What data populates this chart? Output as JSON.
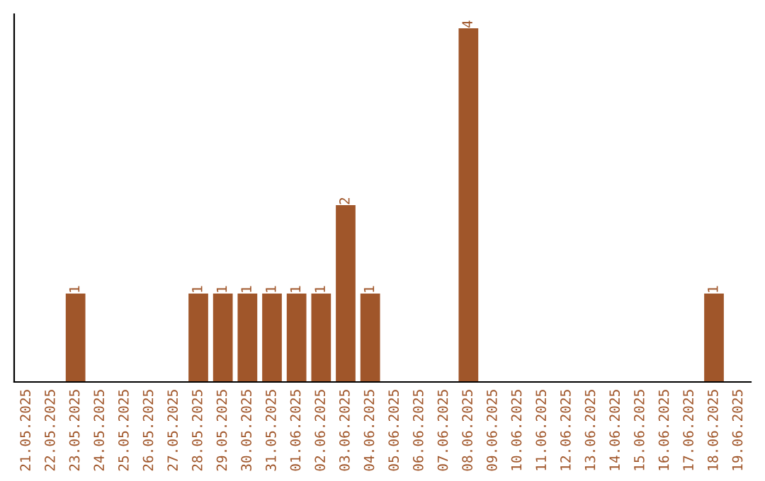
{
  "chart_data": {
    "type": "bar",
    "categories": [
      "21.05.2025",
      "22.05.2025",
      "23.05.2025",
      "24.05.2025",
      "25.05.2025",
      "26.05.2025",
      "27.05.2025",
      "28.05.2025",
      "29.05.2025",
      "30.05.2025",
      "31.05.2025",
      "01.06.2025",
      "02.06.2025",
      "03.06.2025",
      "04.06.2025",
      "05.06.2025",
      "06.06.2025",
      "07.06.2025",
      "08.06.2025",
      "09.06.2025",
      "10.06.2025",
      "11.06.2025",
      "12.06.2025",
      "13.06.2025",
      "14.06.2025",
      "15.06.2025",
      "16.06.2025",
      "17.06.2025",
      "18.06.2025",
      "19.06.2025"
    ],
    "values": [
      0,
      0,
      1,
      0,
      0,
      0,
      0,
      1,
      1,
      1,
      1,
      1,
      1,
      2,
      1,
      0,
      0,
      0,
      4,
      0,
      0,
      0,
      0,
      0,
      0,
      0,
      0,
      0,
      1,
      0
    ],
    "value_labels": [
      null,
      null,
      "1",
      null,
      null,
      null,
      null,
      "1",
      "1",
      "1",
      "1",
      "1",
      "1",
      "2",
      "1",
      null,
      null,
      null,
      "4",
      null,
      null,
      null,
      null,
      null,
      null,
      null,
      null,
      null,
      "1",
      null
    ],
    "color": "#a0562a",
    "tick_labels": "x",
    "grid": false,
    "legend": false
  }
}
